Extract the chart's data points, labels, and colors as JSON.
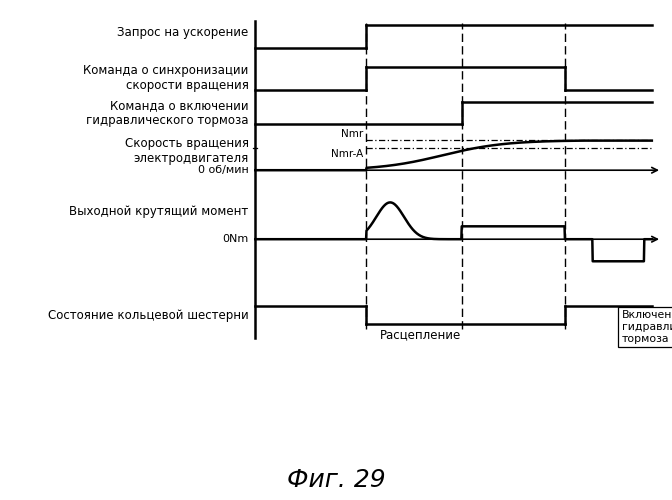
{
  "title": "Фиг. 29",
  "bg_color": "#ffffff",
  "text_color": "#000000",
  "labels": {
    "accel_request": "Запрос на ускорение",
    "sync_command": "Команда о синхронизации\nскорости вращения",
    "brake_command": "Команда о включении\nгидравлического тормоза",
    "motor_speed_label": "Скорость вращения\nэлектродвигателя",
    "zero_rpm": "0 об/мин",
    "output_torque": "Выходной крутящий момент",
    "zero_nm": "0Nm",
    "ring_gear": "Состояние кольцевой шестерни",
    "disengage": "Расцепление",
    "brake_engage": "Включение\nгидравлического\nтормоза",
    "nmr": "Nmr",
    "nmr_a": "Nmr-A"
  }
}
